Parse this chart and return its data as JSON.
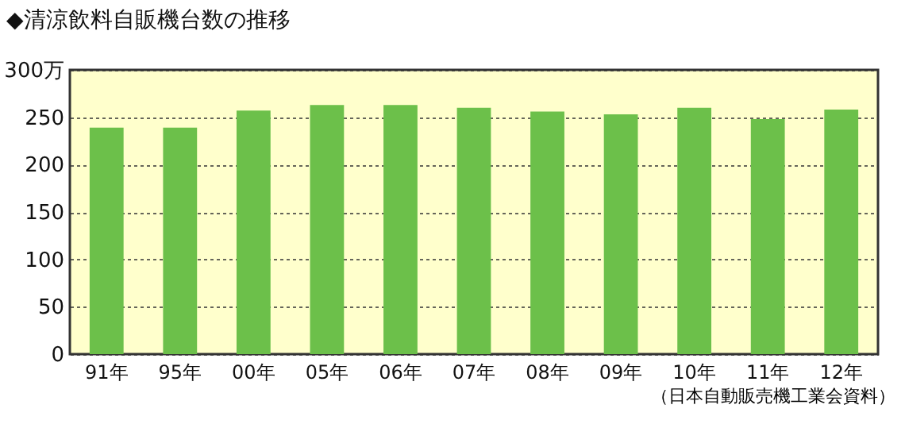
{
  "chart_data": {
    "type": "bar",
    "title": "◆清涼飲料自販機台数の推移",
    "categories": [
      "91年",
      "95年",
      "00年",
      "05年",
      "06年",
      "07年",
      "08年",
      "09年",
      "10年",
      "11年",
      "12年"
    ],
    "values": [
      239,
      239,
      257,
      263,
      263,
      260,
      256,
      253,
      260,
      248,
      258
    ],
    "color": "#6cc04a",
    "ylim": [
      0,
      300
    ],
    "yticks": [
      0,
      50,
      100,
      150,
      200,
      250,
      {
        "value": 300,
        "label": "300万"
      }
    ],
    "grid": "y",
    "annotations": [
      "（日本自動販売機工業会資料）"
    ]
  }
}
